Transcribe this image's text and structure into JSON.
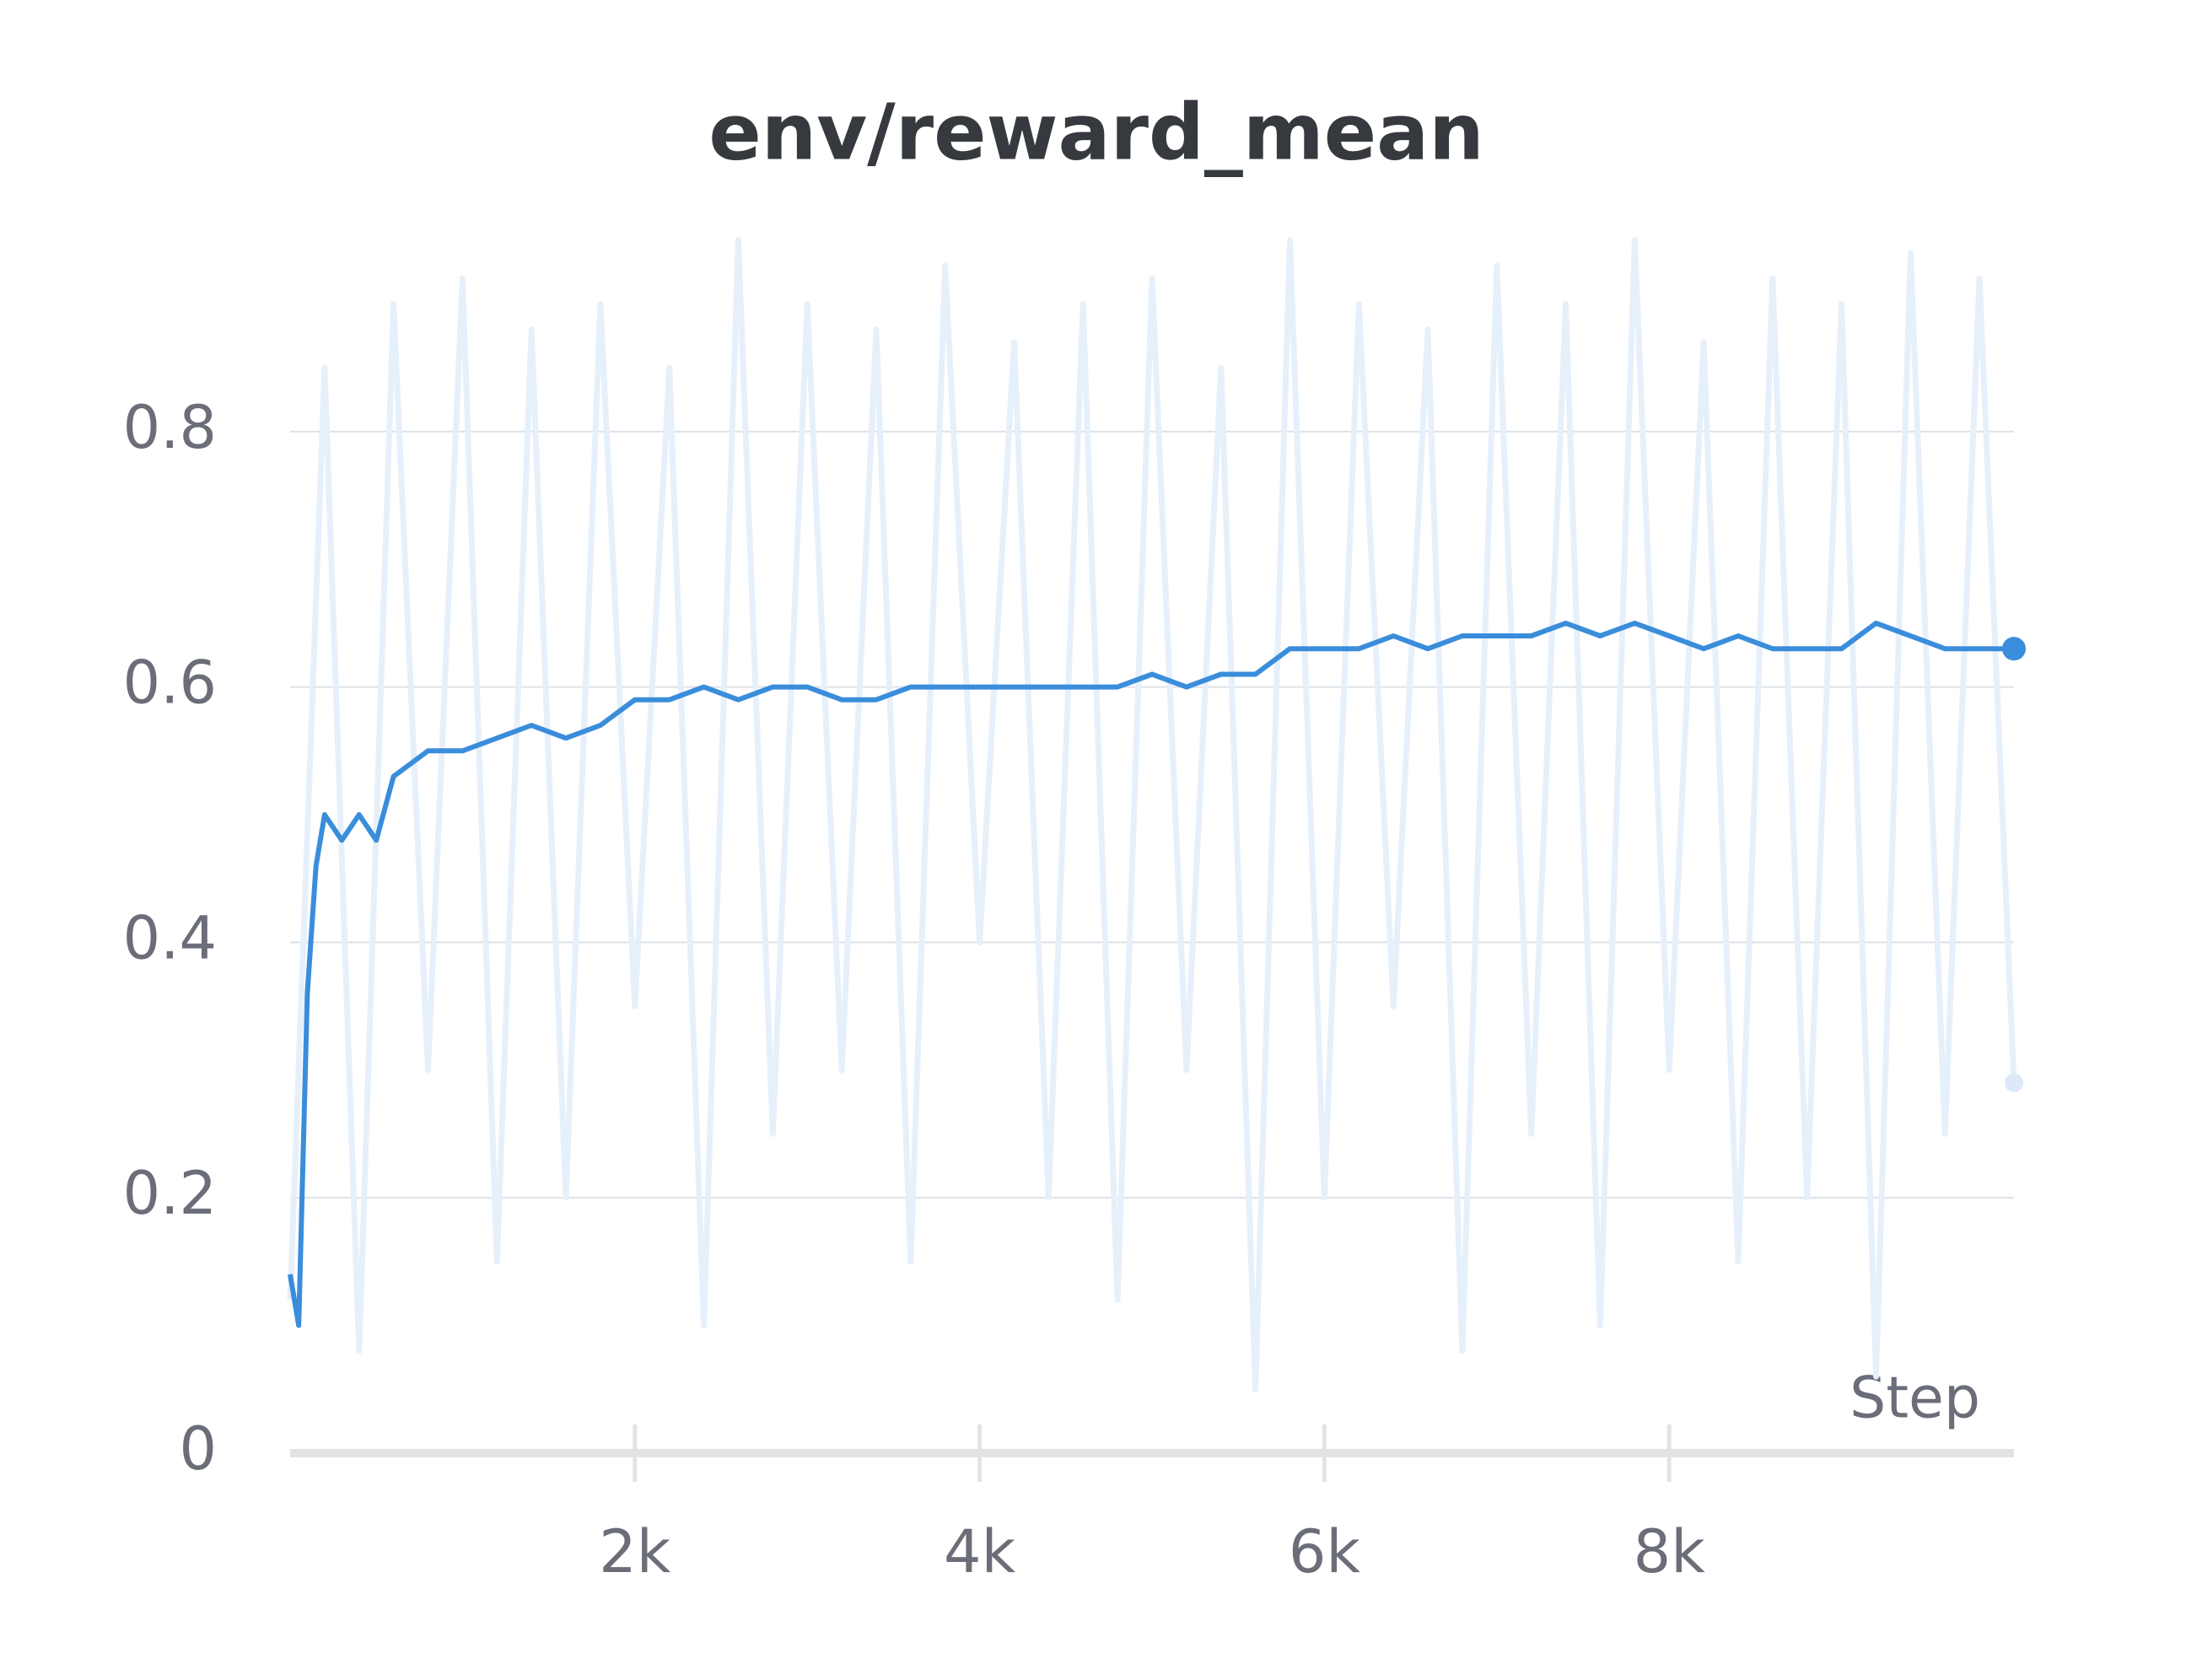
{
  "chart_data": {
    "type": "line",
    "title": "env/reward_mean",
    "xlabel": "Step",
    "xlim": [
      0,
      10000
    ],
    "ylim": [
      0,
      1
    ],
    "xticks": [
      {
        "value": 2000,
        "label": "2k"
      },
      {
        "value": 4000,
        "label": "4k"
      },
      {
        "value": 6000,
        "label": "6k"
      },
      {
        "value": 8000,
        "label": "8k"
      }
    ],
    "yticks": [
      0,
      0.2,
      0.4,
      0.6,
      0.8
    ],
    "grid": true,
    "series": [
      {
        "color": "#e6f0fa",
        "x": [
          0,
          200,
          400,
          600,
          800,
          1000,
          1200,
          1400,
          1600,
          1800,
          2000,
          2200,
          2400,
          2600,
          2800,
          3000,
          3200,
          3400,
          3600,
          3800,
          4000,
          4200,
          4400,
          4600,
          4800,
          5000,
          5200,
          5400,
          5600,
          5800,
          6000,
          6200,
          6400,
          6600,
          6800,
          7000,
          7200,
          7400,
          7600,
          7800,
          8000,
          8200,
          8400,
          8600,
          8800,
          9000,
          9200,
          9400,
          9600,
          9800,
          10000
        ],
        "values": [
          0.12,
          0.85,
          0.08,
          0.9,
          0.3,
          0.92,
          0.15,
          0.88,
          0.2,
          0.9,
          0.35,
          0.85,
          0.1,
          0.95,
          0.25,
          0.9,
          0.3,
          0.88,
          0.15,
          0.93,
          0.4,
          0.87,
          0.2,
          0.9,
          0.12,
          0.92,
          0.3,
          0.85,
          0.05,
          0.95,
          0.2,
          0.9,
          0.35,
          0.88,
          0.08,
          0.93,
          0.25,
          0.9,
          0.1,
          0.95,
          0.3,
          0.87,
          0.15,
          0.92,
          0.2,
          0.9,
          0.06,
          0.94,
          0.25,
          0.92,
          0.29
        ]
      },
      {
        "color": "#3a8ddb",
        "x": [
          0,
          50,
          100,
          150,
          200,
          300,
          400,
          500,
          600,
          800,
          1000,
          1200,
          1400,
          1600,
          1800,
          2000,
          2200,
          2400,
          2600,
          2800,
          3000,
          3200,
          3400,
          3600,
          3800,
          4000,
          4200,
          4400,
          4600,
          4800,
          5000,
          5200,
          5400,
          5600,
          5800,
          6000,
          6200,
          6400,
          6600,
          6800,
          7000,
          7200,
          7400,
          7600,
          7800,
          8000,
          8200,
          8400,
          8600,
          8800,
          9000,
          9200,
          9400,
          9600,
          9800,
          10000
        ],
        "values": [
          0.14,
          0.1,
          0.36,
          0.46,
          0.5,
          0.48,
          0.5,
          0.48,
          0.53,
          0.55,
          0.55,
          0.56,
          0.57,
          0.56,
          0.57,
          0.59,
          0.59,
          0.6,
          0.59,
          0.6,
          0.6,
          0.59,
          0.59,
          0.6,
          0.6,
          0.6,
          0.6,
          0.6,
          0.6,
          0.6,
          0.61,
          0.6,
          0.61,
          0.61,
          0.63,
          0.63,
          0.63,
          0.64,
          0.63,
          0.64,
          0.64,
          0.64,
          0.65,
          0.64,
          0.65,
          0.64,
          0.63,
          0.64,
          0.63,
          0.63,
          0.63,
          0.65,
          0.64,
          0.63,
          0.63,
          0.63
        ]
      }
    ]
  }
}
